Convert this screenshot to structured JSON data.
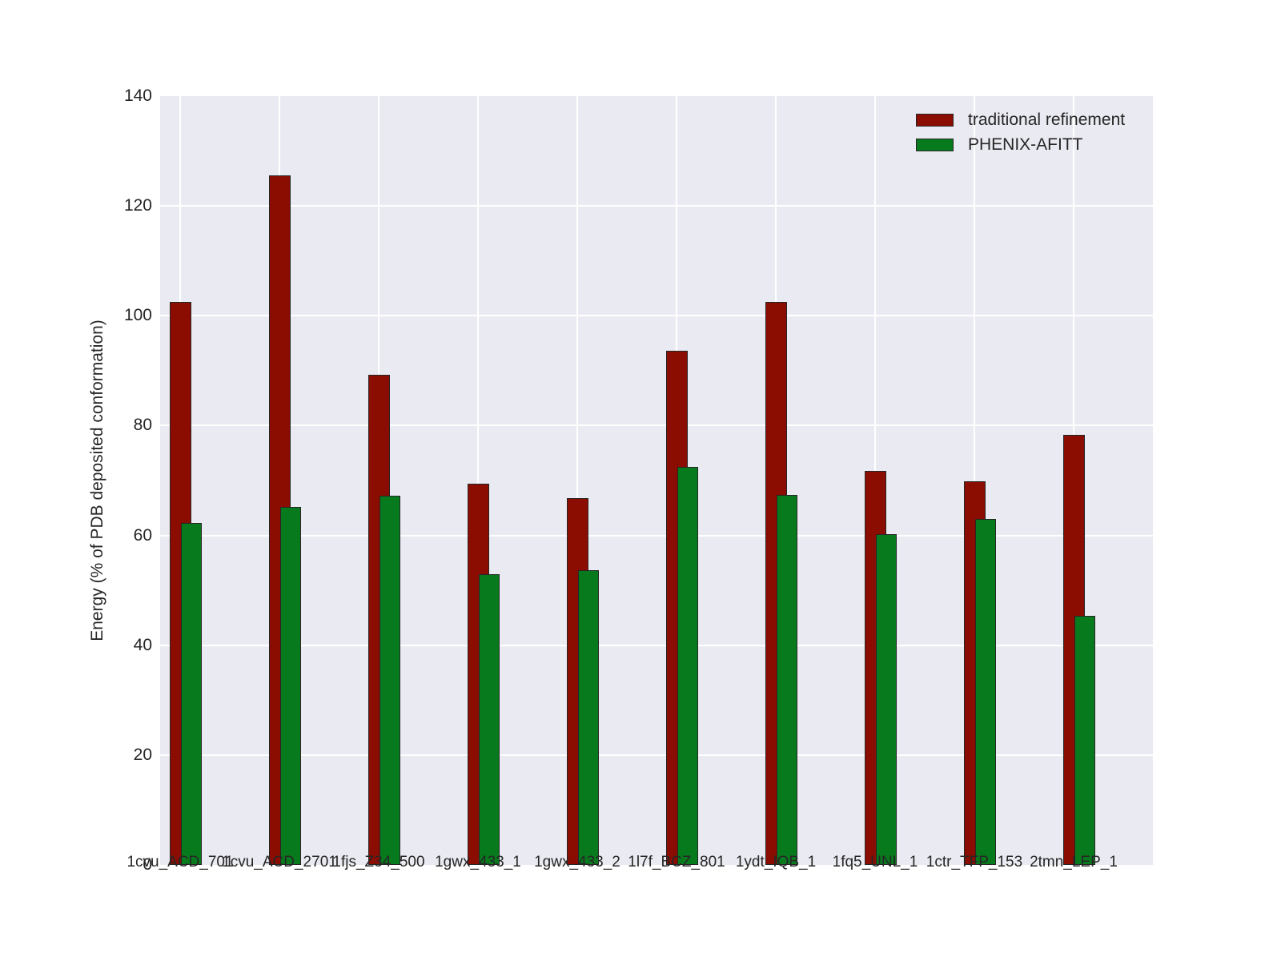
{
  "figure": {
    "background": "#ffffff",
    "plot_background": "#eaeaf2",
    "grid_color": "#ffffff",
    "text_color": "#262626",
    "bar_edge_color": "#262626"
  },
  "legend": {
    "position": "upper right",
    "items": [
      {
        "label": "traditional refinement",
        "color": "#8b0d02"
      },
      {
        "label": "PHENIX-AFITT",
        "color": "#087a1e"
      }
    ]
  },
  "chart_data": {
    "type": "bar",
    "title": "",
    "xlabel": "",
    "ylabel": "Energy (% of PDB deposited conformation)",
    "ylim": [
      0,
      140
    ],
    "yticks": [
      0,
      20,
      40,
      60,
      80,
      100,
      120,
      140
    ],
    "grid": true,
    "legend_position": "upper right",
    "categories": [
      "1cvu_ACD_701",
      "1cvu_ACD_2701",
      "1fjs_Z34_500",
      "1gwx_433_1",
      "1gwx_433_2",
      "1l7f_BCZ_801",
      "1ydt_IQB_1",
      "1fq5_UNL_1",
      "1ctr_TFP_153",
      "2tmn_LEP_1"
    ],
    "series": [
      {
        "name": "traditional refinement",
        "color": "#8b0d02",
        "values": [
          102.5,
          125.5,
          89.3,
          69.4,
          66.8,
          93.7,
          102.5,
          71.8,
          69.9,
          78.3
        ]
      },
      {
        "name": "PHENIX-AFITT",
        "color": "#087a1e",
        "values": [
          62.3,
          65.2,
          67.2,
          53.0,
          53.7,
          72.5,
          67.4,
          60.2,
          63.0,
          45.3
        ]
      }
    ],
    "bar_layout": "overlapping"
  }
}
